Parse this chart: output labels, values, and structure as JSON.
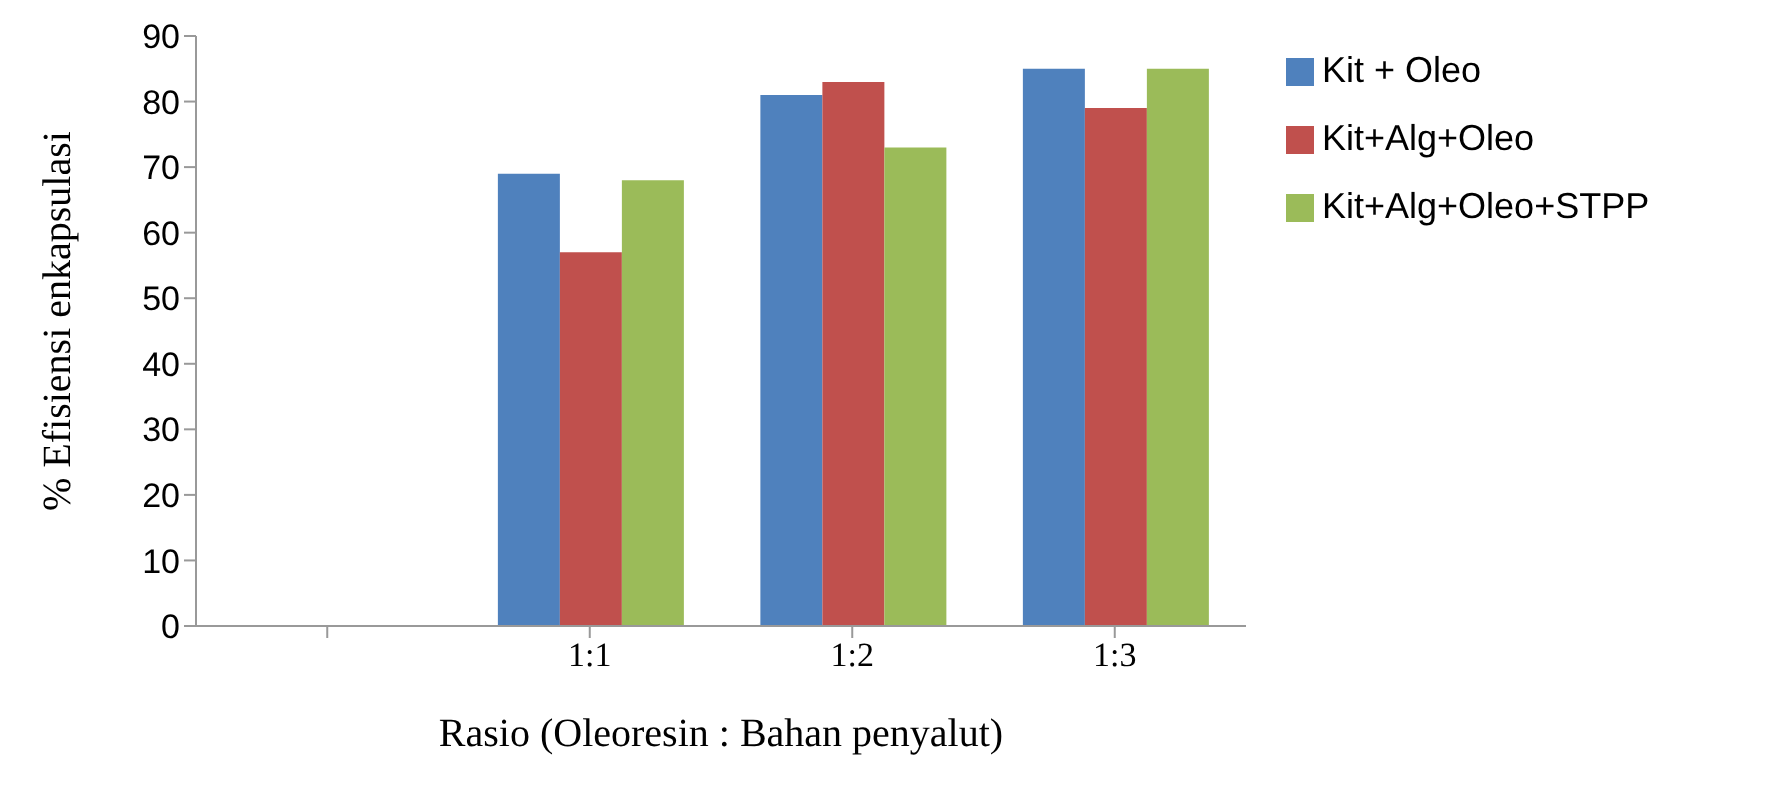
{
  "chart_data": {
    "type": "bar",
    "categories": [
      null,
      "1:1",
      "1:2",
      "1:3"
    ],
    "series": [
      {
        "name": "Kit + Oleo",
        "color": "#4f81bd",
        "values": [
          null,
          69,
          81,
          85
        ]
      },
      {
        "name": "Kit+Alg+Oleo",
        "color": "#c0504d",
        "values": [
          null,
          57,
          83,
          79
        ]
      },
      {
        "name": "Kit+Alg+Oleo+STPP",
        "color": "#9bbb59",
        "values": [
          null,
          68,
          73,
          85
        ]
      }
    ],
    "xlabel": "Rasio (Oleoresin : Bahan penyalut)",
    "ylabel": "% Efisiensi enkapsulasi",
    "ylim": [
      0,
      90
    ],
    "yticks": [
      0,
      10,
      20,
      30,
      40,
      50,
      60,
      70,
      80,
      90
    ],
    "grid": false,
    "legend": "right"
  }
}
